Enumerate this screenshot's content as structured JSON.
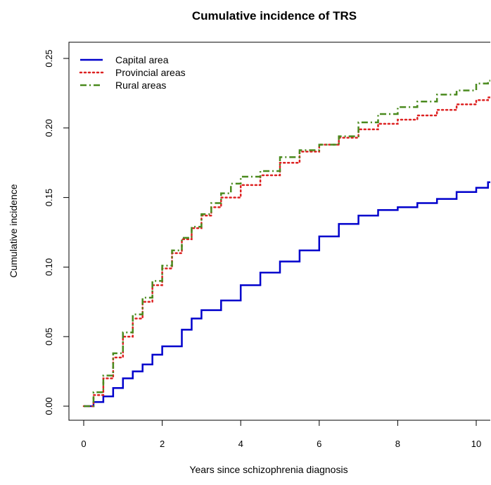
{
  "chart_data": {
    "type": "line",
    "title": "Cumulative incidence of TRS",
    "xlabel": "Years since schizophrenia diagnosis",
    "ylabel": "Cumulative incidence",
    "xlim": [
      0,
      10.3
    ],
    "ylim": [
      0,
      0.25
    ],
    "x_ticks": [
      "0",
      "2",
      "4",
      "6",
      "8",
      "10"
    ],
    "y_ticks": [
      "0.00",
      "0.05",
      "0.10",
      "0.15",
      "0.20",
      "0.25"
    ],
    "grid": false,
    "legend_position": "top-left",
    "series": [
      {
        "name": "Capital area",
        "color": "#0000cc",
        "line_style": "solid",
        "points": [
          [
            0,
            0
          ],
          [
            0.25,
            0.003
          ],
          [
            0.5,
            0.007
          ],
          [
            0.75,
            0.013
          ],
          [
            1,
            0.02
          ],
          [
            1.25,
            0.025
          ],
          [
            1.5,
            0.03
          ],
          [
            1.75,
            0.037
          ],
          [
            2,
            0.043
          ],
          [
            2.5,
            0.055
          ],
          [
            2.75,
            0.063
          ],
          [
            3,
            0.069
          ],
          [
            3.5,
            0.076
          ],
          [
            4,
            0.087
          ],
          [
            4.5,
            0.096
          ],
          [
            5,
            0.104
          ],
          [
            5.5,
            0.112
          ],
          [
            6,
            0.122
          ],
          [
            6.5,
            0.131
          ],
          [
            7,
            0.137
          ],
          [
            7.5,
            0.141
          ],
          [
            8,
            0.143
          ],
          [
            8.5,
            0.146
          ],
          [
            9,
            0.149
          ],
          [
            9.5,
            0.154
          ],
          [
            10,
            0.157
          ],
          [
            10.3,
            0.161
          ]
        ]
      },
      {
        "name": "Provincial areas",
        "color": "#dd2222",
        "line_style": "dotted",
        "points": [
          [
            0,
            0
          ],
          [
            0.25,
            0.008
          ],
          [
            0.5,
            0.02
          ],
          [
            0.75,
            0.035
          ],
          [
            1,
            0.05
          ],
          [
            1.25,
            0.063
          ],
          [
            1.5,
            0.075
          ],
          [
            1.75,
            0.087
          ],
          [
            2,
            0.099
          ],
          [
            2.25,
            0.11
          ],
          [
            2.5,
            0.12
          ],
          [
            2.75,
            0.128
          ],
          [
            3,
            0.137
          ],
          [
            3.25,
            0.143
          ],
          [
            3.5,
            0.15
          ],
          [
            4,
            0.159
          ],
          [
            4.5,
            0.166
          ],
          [
            5,
            0.175
          ],
          [
            5.5,
            0.183
          ],
          [
            6,
            0.188
          ],
          [
            6.5,
            0.193
          ],
          [
            7,
            0.199
          ],
          [
            7.5,
            0.203
          ],
          [
            8,
            0.206
          ],
          [
            8.5,
            0.209
          ],
          [
            9,
            0.213
          ],
          [
            9.5,
            0.217
          ],
          [
            10,
            0.22
          ],
          [
            10.3,
            0.222
          ]
        ]
      },
      {
        "name": "Rural areas",
        "color": "#4a8a1e",
        "line_style": "dashed",
        "points": [
          [
            0,
            0
          ],
          [
            0.25,
            0.01
          ],
          [
            0.5,
            0.022
          ],
          [
            0.75,
            0.038
          ],
          [
            1,
            0.053
          ],
          [
            1.25,
            0.066
          ],
          [
            1.5,
            0.078
          ],
          [
            1.75,
            0.09
          ],
          [
            2,
            0.101
          ],
          [
            2.25,
            0.112
          ],
          [
            2.5,
            0.121
          ],
          [
            2.75,
            0.129
          ],
          [
            3,
            0.138
          ],
          [
            3.25,
            0.146
          ],
          [
            3.5,
            0.153
          ],
          [
            3.75,
            0.16
          ],
          [
            4,
            0.165
          ],
          [
            4.5,
            0.169
          ],
          [
            5,
            0.179
          ],
          [
            5.5,
            0.184
          ],
          [
            6,
            0.188
          ],
          [
            6.5,
            0.194
          ],
          [
            7,
            0.204
          ],
          [
            7.5,
            0.21
          ],
          [
            8,
            0.215
          ],
          [
            8.5,
            0.219
          ],
          [
            9,
            0.224
          ],
          [
            9.5,
            0.227
          ],
          [
            10,
            0.232
          ],
          [
            10.3,
            0.234
          ]
        ]
      }
    ]
  }
}
